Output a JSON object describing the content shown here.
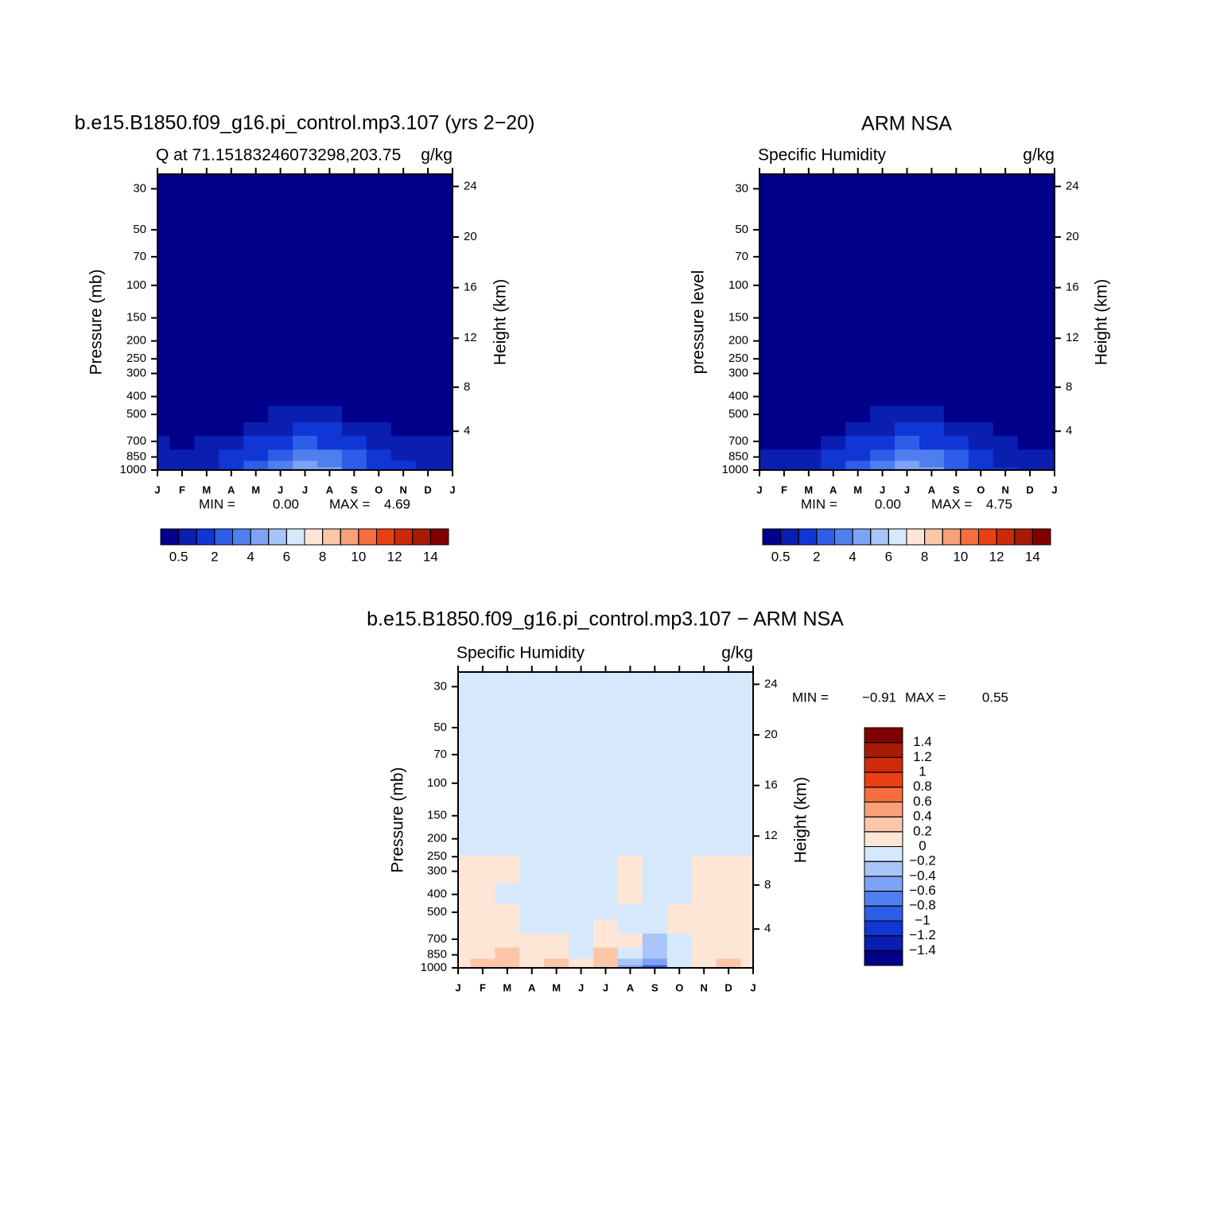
{
  "chart_data": [
    {
      "type": "contour",
      "title": "b.e15.B1850.f09_g16.pi_control.mp3.107 (yrs 2−20)",
      "subtitle_left": "Q at 71.15183246073298,203.75",
      "subtitle_right": "g/kg",
      "y_label": "Pressure (mb)",
      "y2_label": "Height (km)",
      "categories": [
        "J",
        "F",
        "M",
        "A",
        "M",
        "J",
        "J",
        "A",
        "S",
        "O",
        "N",
        "D",
        "J"
      ],
      "y": [
        1000,
        925,
        850,
        700,
        600,
        500,
        400,
        300,
        200,
        100,
        50,
        30
      ],
      "values": [
        [
          0.8,
          0.8,
          0.9,
          1.3,
          2.2,
          3.4,
          4.6,
          4.1,
          2.7,
          1.5,
          1.1,
          0.9,
          0.8
        ],
        [
          0.8,
          0.7,
          0.8,
          1.2,
          2.0,
          3.1,
          4.2,
          3.7,
          2.5,
          1.4,
          1.0,
          0.8,
          0.8
        ],
        [
          0.7,
          0.6,
          0.7,
          1.0,
          1.7,
          2.7,
          3.4,
          3.1,
          2.1,
          1.2,
          0.9,
          0.7,
          0.7
        ],
        [
          0.5,
          0.4,
          0.5,
          0.6,
          1.1,
          1.6,
          2.1,
          1.9,
          1.3,
          0.8,
          0.6,
          0.5,
          0.5
        ],
        [
          0.3,
          0.3,
          0.3,
          0.4,
          0.7,
          0.9,
          1.1,
          1.0,
          0.8,
          0.6,
          0.4,
          0.4,
          0.3
        ],
        [
          0.2,
          0.2,
          0.2,
          0.2,
          0.35,
          0.5,
          0.55,
          0.55,
          0.45,
          0.3,
          0.25,
          0.2,
          0.2
        ],
        [
          0.1,
          0.1,
          0.1,
          0.1,
          0.15,
          0.25,
          0.3,
          0.3,
          0.2,
          0.15,
          0.1,
          0.1,
          0.1
        ],
        [
          0.03,
          0.03,
          0.03,
          0.04,
          0.06,
          0.1,
          0.12,
          0.11,
          0.08,
          0.05,
          0.04,
          0.03,
          0.03
        ],
        [
          0.01,
          0.01,
          0.01,
          0.01,
          0.01,
          0.02,
          0.02,
          0.02,
          0.01,
          0.01,
          0.01,
          0.01,
          0.01
        ],
        [
          0.003,
          0.003,
          0.003,
          0.003,
          0.003,
          0.003,
          0.003,
          0.003,
          0.003,
          0.003,
          0.003,
          0.003,
          0.003
        ],
        [
          0.002,
          0.002,
          0.002,
          0.002,
          0.002,
          0.002,
          0.002,
          0.002,
          0.002,
          0.002,
          0.002,
          0.002,
          0.002
        ],
        [
          0.002,
          0.002,
          0.002,
          0.002,
          0.002,
          0.002,
          0.002,
          0.002,
          0.002,
          0.002,
          0.002,
          0.002,
          0.002
        ]
      ],
      "log_y": true,
      "ylim": [
        1000,
        25
      ],
      "yticks": [
        30,
        50,
        70,
        100,
        150,
        200,
        250,
        300,
        400,
        500,
        700,
        850,
        1000
      ],
      "y2ticks": [
        4,
        8,
        12,
        16,
        20,
        24
      ],
      "stats": [
        {
          "name": "MIN =",
          "value": 0,
          "value_label": "0.00"
        },
        {
          "name": "MAX =",
          "value": 4.69
        }
      ],
      "colorbar": {
        "orientation": "horizontal",
        "levels": [
          0.5,
          1,
          2,
          3,
          4,
          5,
          6,
          7,
          8,
          9,
          10,
          11,
          12,
          13,
          14
        ],
        "ticks": [
          0.5,
          2,
          4,
          6,
          8,
          10,
          12,
          14
        ],
        "colors": [
          "#00008b",
          "#0a1fb0",
          "#1036d6",
          "#2e5ee8",
          "#4f7fef",
          "#7ea3f5",
          "#a9c4f7",
          "#d6e8fc",
          "#fde6d6",
          "#fcc6a8",
          "#f9a07a",
          "#f66d3e",
          "#ea3f14",
          "#cd2a08",
          "#a81a04",
          "#800000"
        ]
      }
    },
    {
      "type": "contour",
      "title": "ARM NSA",
      "subtitle_left": "Specific Humidity",
      "subtitle_right": "g/kg",
      "y_label": "pressure level",
      "y2_label": "Height (km)",
      "categories": [
        "J",
        "F",
        "M",
        "A",
        "M",
        "J",
        "J",
        "A",
        "S",
        "O",
        "N",
        "D",
        "J"
      ],
      "y": [
        1000,
        925,
        850,
        700,
        600,
        500,
        400,
        300,
        200,
        100,
        50,
        30
      ],
      "values": [
        [
          0.8,
          0.8,
          0.7,
          1.4,
          2.3,
          3.5,
          4.7,
          4.2,
          2.8,
          1.6,
          1.0,
          0.8,
          0.8
        ],
        [
          0.8,
          0.7,
          0.6,
          1.2,
          2.0,
          3.1,
          4.1,
          3.7,
          2.5,
          1.4,
          0.9,
          0.8,
          0.8
        ],
        [
          0.6,
          0.6,
          0.5,
          1.0,
          1.7,
          2.6,
          3.3,
          3.0,
          2.1,
          1.2,
          0.8,
          0.6,
          0.6
        ],
        [
          0.4,
          0.4,
          0.4,
          0.6,
          1.1,
          1.6,
          2.1,
          1.9,
          1.4,
          0.9,
          0.6,
          0.4,
          0.4
        ],
        [
          0.3,
          0.3,
          0.3,
          0.4,
          0.7,
          0.9,
          1.1,
          1.0,
          0.8,
          0.6,
          0.4,
          0.3,
          0.3
        ],
        [
          0.2,
          0.2,
          0.2,
          0.2,
          0.35,
          0.5,
          0.6,
          0.55,
          0.45,
          0.3,
          0.2,
          0.2,
          0.2
        ],
        [
          0.1,
          0.1,
          0.1,
          0.1,
          0.15,
          0.25,
          0.3,
          0.3,
          0.2,
          0.15,
          0.1,
          0.1,
          0.1
        ],
        [
          0.03,
          0.03,
          0.03,
          0.04,
          0.06,
          0.1,
          0.12,
          0.11,
          0.08,
          0.05,
          0.04,
          0.03,
          0.03
        ],
        [
          0.01,
          0.01,
          0.01,
          0.01,
          0.01,
          0.02,
          0.02,
          0.02,
          0.01,
          0.01,
          0.01,
          0.01,
          0.01
        ],
        [
          0.003,
          0.003,
          0.003,
          0.003,
          0.003,
          0.003,
          0.003,
          0.003,
          0.003,
          0.003,
          0.003,
          0.003,
          0.003
        ],
        [
          0.002,
          0.002,
          0.002,
          0.002,
          0.002,
          0.002,
          0.002,
          0.002,
          0.002,
          0.002,
          0.002,
          0.002,
          0.002
        ],
        [
          0.002,
          0.002,
          0.002,
          0.002,
          0.002,
          0.002,
          0.002,
          0.002,
          0.002,
          0.002,
          0.002,
          0.002,
          0.002
        ]
      ],
      "log_y": true,
      "ylim": [
        1000,
        25
      ],
      "yticks": [
        30,
        50,
        70,
        100,
        150,
        200,
        250,
        300,
        400,
        500,
        700,
        850,
        1000
      ],
      "y2ticks": [
        4,
        8,
        12,
        16,
        20,
        24
      ],
      "stats": [
        {
          "name": "MIN =",
          "value": 0,
          "value_label": "0.00"
        },
        {
          "name": "MAX =",
          "value": 4.75
        }
      ],
      "colorbar": {
        "orientation": "horizontal",
        "levels": [
          0.5,
          1,
          2,
          3,
          4,
          5,
          6,
          7,
          8,
          9,
          10,
          11,
          12,
          13,
          14
        ],
        "ticks": [
          0.5,
          2,
          4,
          6,
          8,
          10,
          12,
          14
        ],
        "colors": [
          "#00008b",
          "#0a1fb0",
          "#1036d6",
          "#2e5ee8",
          "#4f7fef",
          "#7ea3f5",
          "#a9c4f7",
          "#d6e8fc",
          "#fde6d6",
          "#fcc6a8",
          "#f9a07a",
          "#f66d3e",
          "#ea3f14",
          "#cd2a08",
          "#a81a04",
          "#800000"
        ]
      }
    },
    {
      "type": "contour",
      "title": "b.e15.B1850.f09_g16.pi_control.mp3.107 − ARM NSA",
      "subtitle_left": "Specific Humidity",
      "subtitle_right": "g/kg",
      "y_label": "Pressure (mb)",
      "y2_label": "Height (km)",
      "categories": [
        "J",
        "F",
        "M",
        "A",
        "M",
        "J",
        "J",
        "A",
        "S",
        "O",
        "N",
        "D",
        "J"
      ],
      "y": [
        1000,
        925,
        850,
        700,
        600,
        500,
        400,
        300,
        200,
        100,
        50,
        30
      ],
      "values": [
        [
          0.1,
          0.25,
          0.3,
          0.1,
          0.25,
          0.02,
          0.35,
          -0.45,
          -0.9,
          -0.1,
          0.05,
          0.25,
          0.1
        ],
        [
          0.1,
          0.2,
          0.25,
          0.1,
          0.2,
          0.02,
          0.3,
          -0.25,
          -0.6,
          -0.05,
          0.1,
          0.2,
          0.1
        ],
        [
          0.1,
          0.15,
          0.2,
          0.1,
          0.15,
          -0.05,
          0.2,
          -0.1,
          -0.4,
          -0.05,
          0.1,
          0.15,
          0.1
        ],
        [
          0.1,
          0.1,
          0.1,
          0.05,
          0.05,
          -0.05,
          0.1,
          0.05,
          -0.25,
          -0.05,
          0.1,
          0.1,
          0.1
        ],
        [
          0.1,
          0.1,
          0.05,
          -0.05,
          -0.05,
          -0.05,
          0.05,
          -0.05,
          -0.15,
          0.05,
          0.1,
          0.1,
          0.1
        ],
        [
          0.1,
          0.1,
          0.05,
          -0.05,
          -0.05,
          -0.05,
          -0.05,
          -0.05,
          -0.05,
          0.05,
          0.1,
          0.1,
          0.1
        ],
        [
          0.05,
          0.05,
          -0.05,
          -0.05,
          -0.05,
          -0.05,
          -0.05,
          0.05,
          -0.05,
          -0.05,
          0.05,
          0.05,
          0.05
        ],
        [
          0.05,
          0.05,
          0.05,
          -0.05,
          -0.05,
          -0.05,
          -0.05,
          0.05,
          -0.05,
          -0.05,
          0.05,
          0.05,
          0.05
        ],
        [
          -0.02,
          -0.02,
          -0.02,
          -0.02,
          -0.02,
          -0.02,
          -0.02,
          -0.02,
          -0.02,
          -0.02,
          -0.02,
          -0.02,
          -0.02
        ],
        [
          -0.01,
          -0.01,
          -0.01,
          -0.01,
          -0.01,
          -0.01,
          -0.01,
          -0.01,
          -0.01,
          -0.01,
          -0.01,
          -0.01,
          -0.01
        ],
        [
          -0.01,
          -0.01,
          -0.01,
          -0.01,
          -0.01,
          -0.01,
          -0.01,
          -0.01,
          -0.01,
          -0.01,
          -0.01,
          -0.01,
          -0.01
        ],
        [
          -0.01,
          -0.01,
          -0.01,
          -0.01,
          -0.01,
          -0.01,
          -0.01,
          -0.01,
          -0.01,
          -0.01,
          -0.01,
          -0.01,
          -0.01
        ]
      ],
      "log_y": true,
      "ylim": [
        1000,
        25
      ],
      "yticks": [
        30,
        50,
        70,
        100,
        150,
        200,
        250,
        300,
        400,
        500,
        700,
        850,
        1000
      ],
      "y2ticks": [
        4,
        8,
        12,
        16,
        20,
        24
      ],
      "stats": [
        {
          "name": "MIN =",
          "value": -0.91,
          "value_label": "−0.91"
        },
        {
          "name": "MAX =",
          "value": 0.55
        }
      ],
      "colorbar": {
        "orientation": "vertical",
        "levels": [
          -1.4,
          -1.2,
          -1,
          -0.8,
          -0.6,
          -0.4,
          -0.2,
          0,
          0.2,
          0.4,
          0.6,
          0.8,
          1,
          1.2,
          1.4
        ],
        "ticks": [
          {
            "value": -1.4,
            "label": "−1.4"
          },
          {
            "value": -1.2,
            "label": "−1.2"
          },
          {
            "value": -1,
            "label": "−1"
          },
          {
            "value": -0.8,
            "label": "−0.8"
          },
          {
            "value": -0.6,
            "label": "−0.6"
          },
          {
            "value": -0.4,
            "label": "−0.4"
          },
          {
            "value": -0.2,
            "label": "−0.2"
          },
          0,
          0.2,
          0.4,
          0.6,
          0.8,
          1,
          1.2,
          1.4
        ],
        "colors": [
          "#00008b",
          "#0a1fb0",
          "#1036d6",
          "#2e5ee8",
          "#4f7fef",
          "#7ea3f5",
          "#a9c4f7",
          "#d6e8fc",
          "#fde6d6",
          "#fcc6a8",
          "#f9a07a",
          "#f66d3e",
          "#ea3f14",
          "#cd2a08",
          "#a81a04",
          "#800000"
        ]
      }
    }
  ]
}
